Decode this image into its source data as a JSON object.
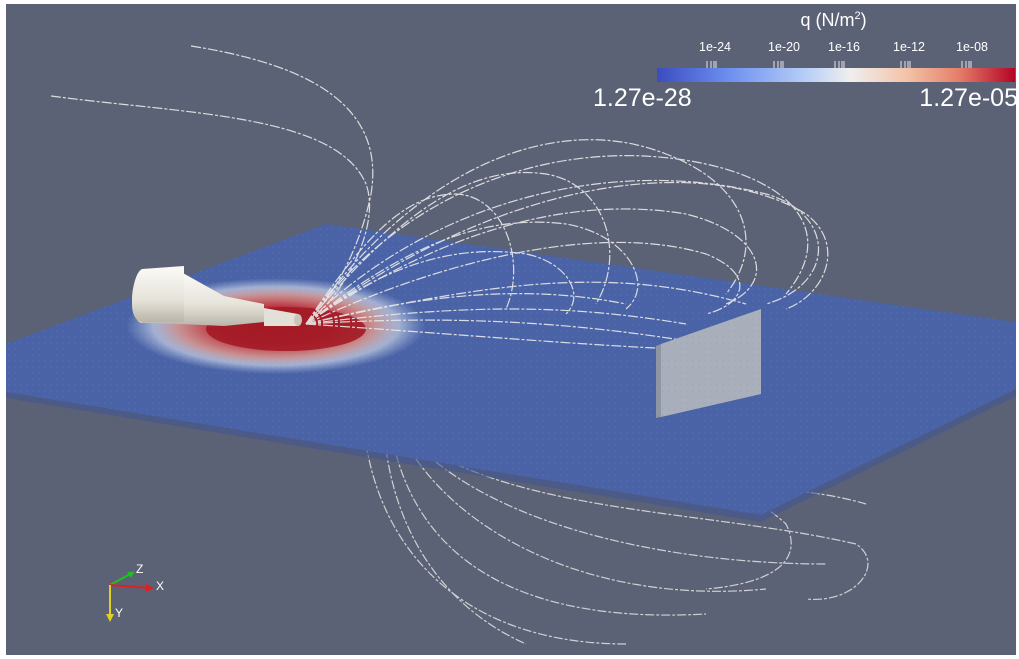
{
  "colorbar": {
    "title_prefix": "q (N/m",
    "title_sup": "2",
    "title_suffix": ")",
    "tick_labels": [
      "1e-24",
      "1e-20",
      "1e-16",
      "1e-12",
      "1e-08"
    ],
    "min_label": "1.27e-28",
    "max_label": "1.27e-05",
    "colormap": [
      "#3b4cc0",
      "#f0efee",
      "#b40426"
    ]
  },
  "axes": {
    "x_label": "X",
    "y_label": "Y",
    "z_label": "Z",
    "x_color": "#e02020",
    "y_color": "#e0d020",
    "z_color": "#20c020"
  },
  "scene": {
    "background": "#5c6275",
    "plane_color": "#4a63a6",
    "hot_color": "#a8202a",
    "streamline_color": "#e6e6e6",
    "nozzle_color": "#eeece6"
  }
}
